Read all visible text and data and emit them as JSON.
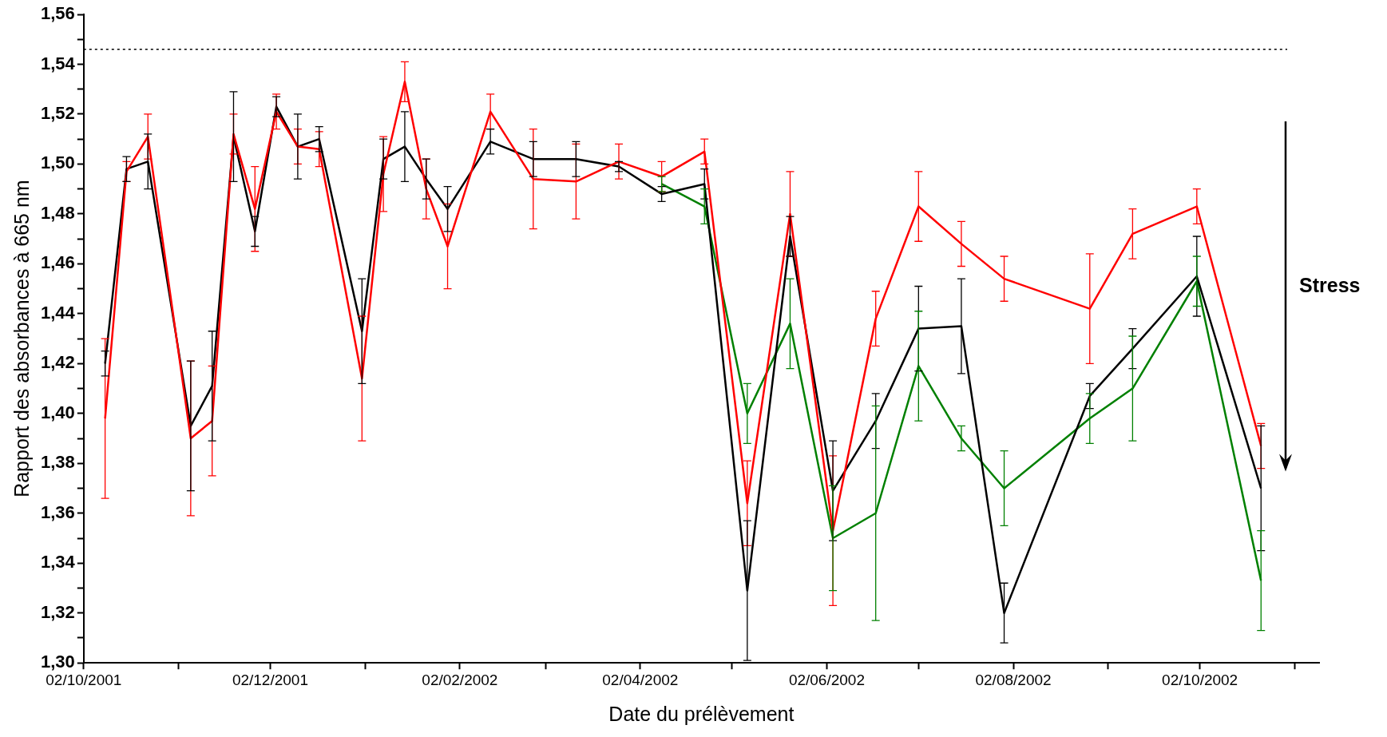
{
  "chart_data": {
    "type": "line",
    "xlabel": "Date du prélèvement",
    "ylabel": "Rapport des absorbances à 665 nm",
    "x": [
      "2001-10-09",
      "2001-10-16",
      "2001-10-23",
      "2001-11-06",
      "2001-11-13",
      "2001-11-20",
      "2001-11-27",
      "2001-12-04",
      "2001-12-11",
      "2001-12-18",
      "2002-01-01",
      "2002-01-08",
      "2002-01-15",
      "2002-01-22",
      "2002-01-29",
      "2002-02-12",
      "2002-02-26",
      "2002-03-12",
      "2002-03-26",
      "2002-04-09",
      "2002-04-23",
      "2002-05-07",
      "2002-05-21",
      "2002-06-04",
      "2002-06-18",
      "2002-07-02",
      "2002-07-16",
      "2002-07-30",
      "2002-08-27",
      "2002-09-10",
      "2002-10-01",
      "2002-10-22"
    ],
    "series": [
      {
        "color": "#ff0000",
        "values": [
          1.398,
          1.497,
          1.511,
          1.39,
          1.397,
          1.512,
          1.482,
          1.521,
          1.507,
          1.506,
          1.414,
          1.496,
          1.533,
          1.49,
          1.467,
          1.521,
          1.494,
          1.493,
          1.501,
          1.495,
          1.505,
          1.364,
          1.48,
          1.353,
          1.438,
          1.483,
          1.468,
          1.454,
          1.442,
          1.472,
          1.483,
          1.387
        ],
        "errors": [
          0.032,
          0.004,
          0.009,
          0.031,
          0.022,
          0.008,
          0.017,
          0.007,
          0.007,
          0.007,
          0.025,
          0.015,
          0.008,
          0.012,
          0.017,
          0.007,
          0.02,
          0.015,
          0.007,
          0.006,
          0.005,
          0.017,
          0.017,
          0.03,
          0.011,
          0.014,
          0.009,
          0.009,
          0.022,
          0.01,
          0.007,
          0.009
        ]
      },
      {
        "color": "#000000",
        "values": [
          1.42,
          1.498,
          1.501,
          1.395,
          1.411,
          1.511,
          1.473,
          1.523,
          1.507,
          1.51,
          1.433,
          1.502,
          1.507,
          1.494,
          1.482,
          1.509,
          1.502,
          1.502,
          1.499,
          1.488,
          1.492,
          1.329,
          1.471,
          1.369,
          1.397,
          1.434,
          1.435,
          1.32,
          1.407,
          1.426,
          1.455,
          1.37
        ],
        "errors": [
          0.005,
          0.005,
          0.011,
          0.026,
          0.022,
          0.018,
          0.006,
          0.004,
          0.013,
          0.005,
          0.021,
          0.008,
          0.014,
          0.008,
          0.009,
          0.005,
          0.007,
          0.007,
          0.002,
          0.003,
          0.006,
          0.028,
          0.008,
          0.02,
          0.011,
          0.017,
          0.019,
          0.012,
          0.005,
          0.008,
          0.016,
          0.025
        ]
      },
      {
        "color": "#008000",
        "values": [
          null,
          null,
          null,
          null,
          null,
          null,
          null,
          null,
          null,
          null,
          null,
          null,
          null,
          null,
          null,
          null,
          null,
          null,
          null,
          1.492,
          1.483,
          1.4,
          1.436,
          1.35,
          1.36,
          1.419,
          1.39,
          1.37,
          1.398,
          1.41,
          1.453,
          1.333
        ],
        "errors": [
          null,
          null,
          null,
          null,
          null,
          null,
          null,
          null,
          null,
          null,
          null,
          null,
          null,
          null,
          null,
          null,
          null,
          null,
          null,
          0.003,
          0.007,
          0.012,
          0.018,
          0.021,
          0.043,
          0.022,
          0.005,
          0.015,
          0.01,
          0.021,
          0.01,
          0.02
        ]
      }
    ],
    "xlim": [
      "2001-10-02",
      "2002-11-10"
    ],
    "xticks": [
      {
        "value": "2001-10-02",
        "label": "02/10/2001"
      },
      {
        "value": "2001-11-02",
        "label": null
      },
      {
        "value": "2001-12-02",
        "label": "02/12/2001"
      },
      {
        "value": "2002-01-02",
        "label": null
      },
      {
        "value": "2002-02-02",
        "label": "02/02/2002"
      },
      {
        "value": "2002-03-02",
        "label": null
      },
      {
        "value": "2002-04-02",
        "label": "02/04/2002"
      },
      {
        "value": "2002-05-02",
        "label": null
      },
      {
        "value": "2002-06-02",
        "label": "02/06/2002"
      },
      {
        "value": "2002-07-02",
        "label": null
      },
      {
        "value": "2002-08-02",
        "label": "02/08/2002"
      },
      {
        "value": "2002-09-02",
        "label": null
      },
      {
        "value": "2002-10-02",
        "label": "02/10/2002"
      },
      {
        "value": "2002-11-02",
        "label": null
      }
    ],
    "ylim": [
      1.3,
      1.56
    ],
    "yticks": [
      {
        "value": 1.3,
        "label": "1,30"
      },
      {
        "value": 1.31,
        "label": null
      },
      {
        "value": 1.32,
        "label": "1,32"
      },
      {
        "value": 1.33,
        "label": null
      },
      {
        "value": 1.34,
        "label": "1,34"
      },
      {
        "value": 1.35,
        "label": null
      },
      {
        "value": 1.36,
        "label": "1,36"
      },
      {
        "value": 1.37,
        "label": null
      },
      {
        "value": 1.38,
        "label": "1,38"
      },
      {
        "value": 1.39,
        "label": null
      },
      {
        "value": 1.4,
        "label": "1,40"
      },
      {
        "value": 1.41,
        "label": null
      },
      {
        "value": 1.42,
        "label": "1,42"
      },
      {
        "value": 1.43,
        "label": null
      },
      {
        "value": 1.44,
        "label": "1,44"
      },
      {
        "value": 1.45,
        "label": null
      },
      {
        "value": 1.46,
        "label": "1,46"
      },
      {
        "value": 1.47,
        "label": null
      },
      {
        "value": 1.48,
        "label": "1,48"
      },
      {
        "value": 1.49,
        "label": null
      },
      {
        "value": 1.5,
        "label": "1,50"
      },
      {
        "value": 1.51,
        "label": null
      },
      {
        "value": 1.52,
        "label": "1,52"
      },
      {
        "value": 1.53,
        "label": null
      },
      {
        "value": 1.54,
        "label": "1,54"
      },
      {
        "value": 1.55,
        "label": null
      },
      {
        "value": 1.56,
        "label": "1,56"
      }
    ],
    "ref_lines": [
      {
        "axis": "y",
        "value": 1.546,
        "color": "#000000",
        "line_style": "dotted"
      }
    ],
    "annotations": [
      "Stress"
    ],
    "grid": false,
    "legend": false,
    "marker": "none",
    "line_style": "solid"
  }
}
